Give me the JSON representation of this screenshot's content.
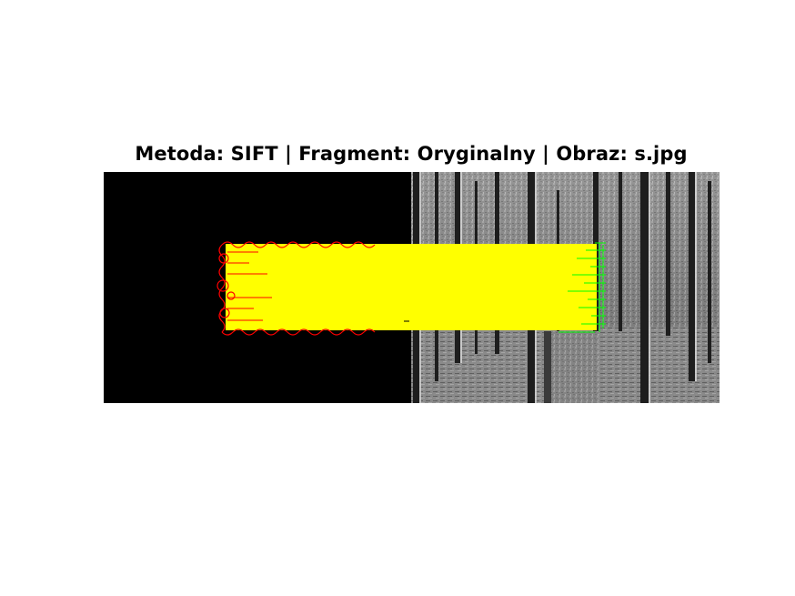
{
  "figure": {
    "title": "Metoda: SIFT | Fragment: Oryginalny | Obraz: s.jpg"
  },
  "colors": {
    "match_lines": "#ffff00",
    "query_keypoints": "#ff0000",
    "scene_keypoints": "#00ff00",
    "query_background": "#000000"
  },
  "panels": {
    "left": "query-fragment-black",
    "right": "grayscale-forest-scene"
  }
}
